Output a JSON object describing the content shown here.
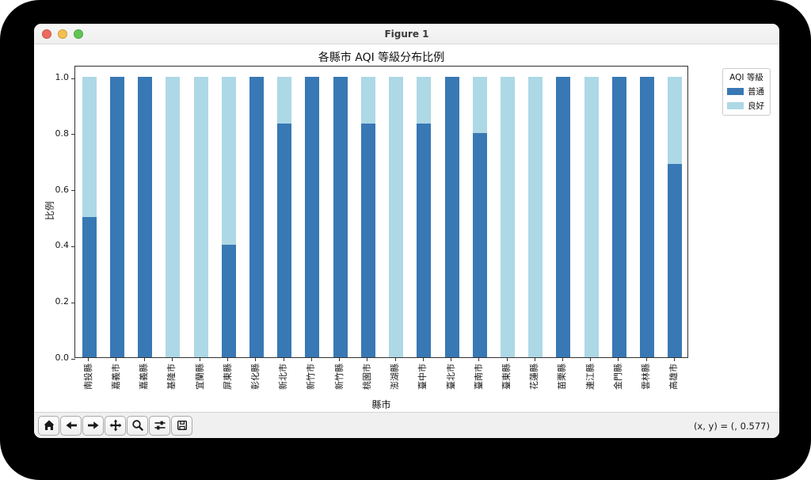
{
  "window": {
    "title": "Figure 1",
    "traffic_lights": [
      {
        "name": "close",
        "color": "#ed6a5e"
      },
      {
        "name": "minimize",
        "color": "#f4bf4f"
      },
      {
        "name": "zoom",
        "color": "#61c554"
      }
    ]
  },
  "chart_data": {
    "type": "bar",
    "stacked": true,
    "title": "各縣市 AQI 等級分布比例",
    "xlabel": "縣市",
    "ylabel": "比例",
    "ylim": [
      0,
      1.05
    ],
    "yticks": [
      "0.0",
      "0.2",
      "0.4",
      "0.6",
      "0.8",
      "1.0"
    ],
    "grid": false,
    "legend": {
      "title": "AQI 等級",
      "position": "outside upper right"
    },
    "categories": [
      "南投縣",
      "嘉義市",
      "嘉義縣",
      "基隆市",
      "宜蘭縣",
      "屏東縣",
      "彰化縣",
      "新北市",
      "新竹市",
      "新竹縣",
      "桃園市",
      "澎湖縣",
      "臺中市",
      "臺北市",
      "臺南市",
      "臺東縣",
      "花蓮縣",
      "苗栗縣",
      "連江縣",
      "金門縣",
      "雲林縣",
      "高雄市"
    ],
    "series": [
      {
        "name": "普通",
        "color": "#3878b4",
        "values": [
          0.5,
          1.0,
          1.0,
          0.0,
          0.0,
          0.4,
          1.0,
          0.833,
          1.0,
          1.0,
          0.833,
          0.0,
          0.833,
          1.0,
          0.8,
          0.0,
          0.0,
          1.0,
          0.0,
          1.0,
          1.0,
          0.69
        ]
      },
      {
        "name": "良好",
        "color": "#add8e6",
        "values": [
          0.5,
          0.0,
          0.0,
          1.0,
          1.0,
          0.6,
          0.0,
          0.167,
          0.0,
          0.0,
          0.167,
          1.0,
          0.167,
          0.0,
          0.2,
          1.0,
          1.0,
          0.0,
          1.0,
          0.0,
          0.0,
          0.31
        ]
      }
    ]
  },
  "toolbar": {
    "buttons": [
      {
        "name": "home",
        "icon": "home-icon"
      },
      {
        "name": "back",
        "icon": "back-icon"
      },
      {
        "name": "forward",
        "icon": "forward-icon"
      },
      {
        "name": "pan",
        "icon": "pan-icon"
      },
      {
        "name": "zoom-to-rect",
        "icon": "zoom-icon"
      },
      {
        "name": "configure-subplots",
        "icon": "subplots-icon"
      },
      {
        "name": "save",
        "icon": "save-icon"
      }
    ],
    "status": "(x, y) = (, 0.577)"
  }
}
